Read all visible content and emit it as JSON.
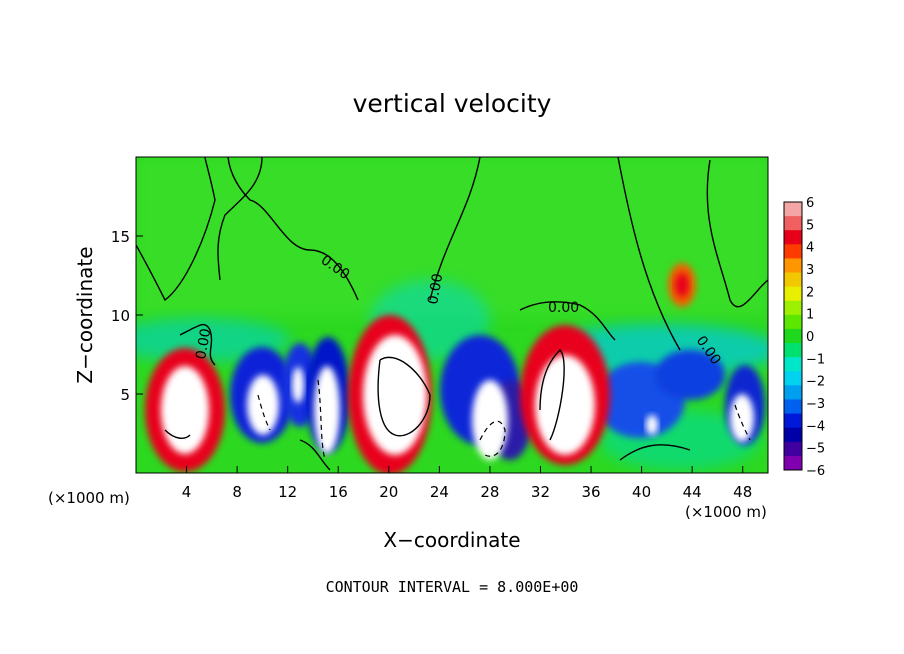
{
  "chart_data": {
    "type": "heatmap",
    "title": "vertical velocity",
    "xlabel": "X−coordinate",
    "ylabel": "Z−coordinate",
    "x_unit": "(×1000 m)",
    "xlim": [
      0,
      50
    ],
    "ylim": [
      0,
      20
    ],
    "x_ticks": [
      4,
      8,
      12,
      16,
      20,
      24,
      28,
      32,
      36,
      40,
      44,
      48
    ],
    "y_ticks": [
      5,
      10,
      15
    ],
    "colorbar": {
      "ticks": [
        "6",
        "5",
        "4",
        "3",
        "2",
        "1",
        "0",
        "−1",
        "−2",
        "−3",
        "−4",
        "−5",
        "−6"
      ],
      "range": [
        -6,
        6
      ],
      "colors": [
        "#f4a6a6",
        "#f06060",
        "#e8001a",
        "#ff3c00",
        "#ff9600",
        "#f2c800",
        "#e8f000",
        "#9cf000",
        "#5ce600",
        "#1ed81e",
        "#00e070",
        "#00e6c8",
        "#00d2f0",
        "#00a0f0",
        "#0060f0",
        "#0018d8",
        "#0000a8",
        "#4000a0",
        "#8000b0"
      ]
    },
    "contour_labels": [
      "0.00",
      "0.00",
      "0.00",
      "0.00",
      "0.00"
    ],
    "contour_interval_note": "CONTOUR INTERVAL = 8.000E+00",
    "features": [
      {
        "kind": "updraft",
        "x": 4.5,
        "z": 4.8,
        "peak": 6
      },
      {
        "kind": "downdraft",
        "x": 10,
        "z": 4,
        "peak": -6
      },
      {
        "kind": "updraft",
        "x": 12.7,
        "z": 5.5,
        "peak": 6
      },
      {
        "kind": "updraft",
        "x": 15,
        "z": 4.5,
        "peak": 6
      },
      {
        "kind": "updraft",
        "x": 20.5,
        "z": 5.5,
        "peak": 6
      },
      {
        "kind": "downdraft",
        "x": 24.5,
        "z": 5,
        "peak": -6
      },
      {
        "kind": "updraft",
        "x": 28,
        "z": 4.3,
        "peak": 6
      },
      {
        "kind": "updraft",
        "x": 33.5,
        "z": 5,
        "peak": 6
      },
      {
        "kind": "downdraft",
        "x": 40.5,
        "z": 3,
        "peak": -6
      },
      {
        "kind": "updraft",
        "x": 43,
        "z": 12,
        "peak": 4
      },
      {
        "kind": "updraft",
        "x": 47.5,
        "z": 3.5,
        "peak": 6
      }
    ]
  }
}
